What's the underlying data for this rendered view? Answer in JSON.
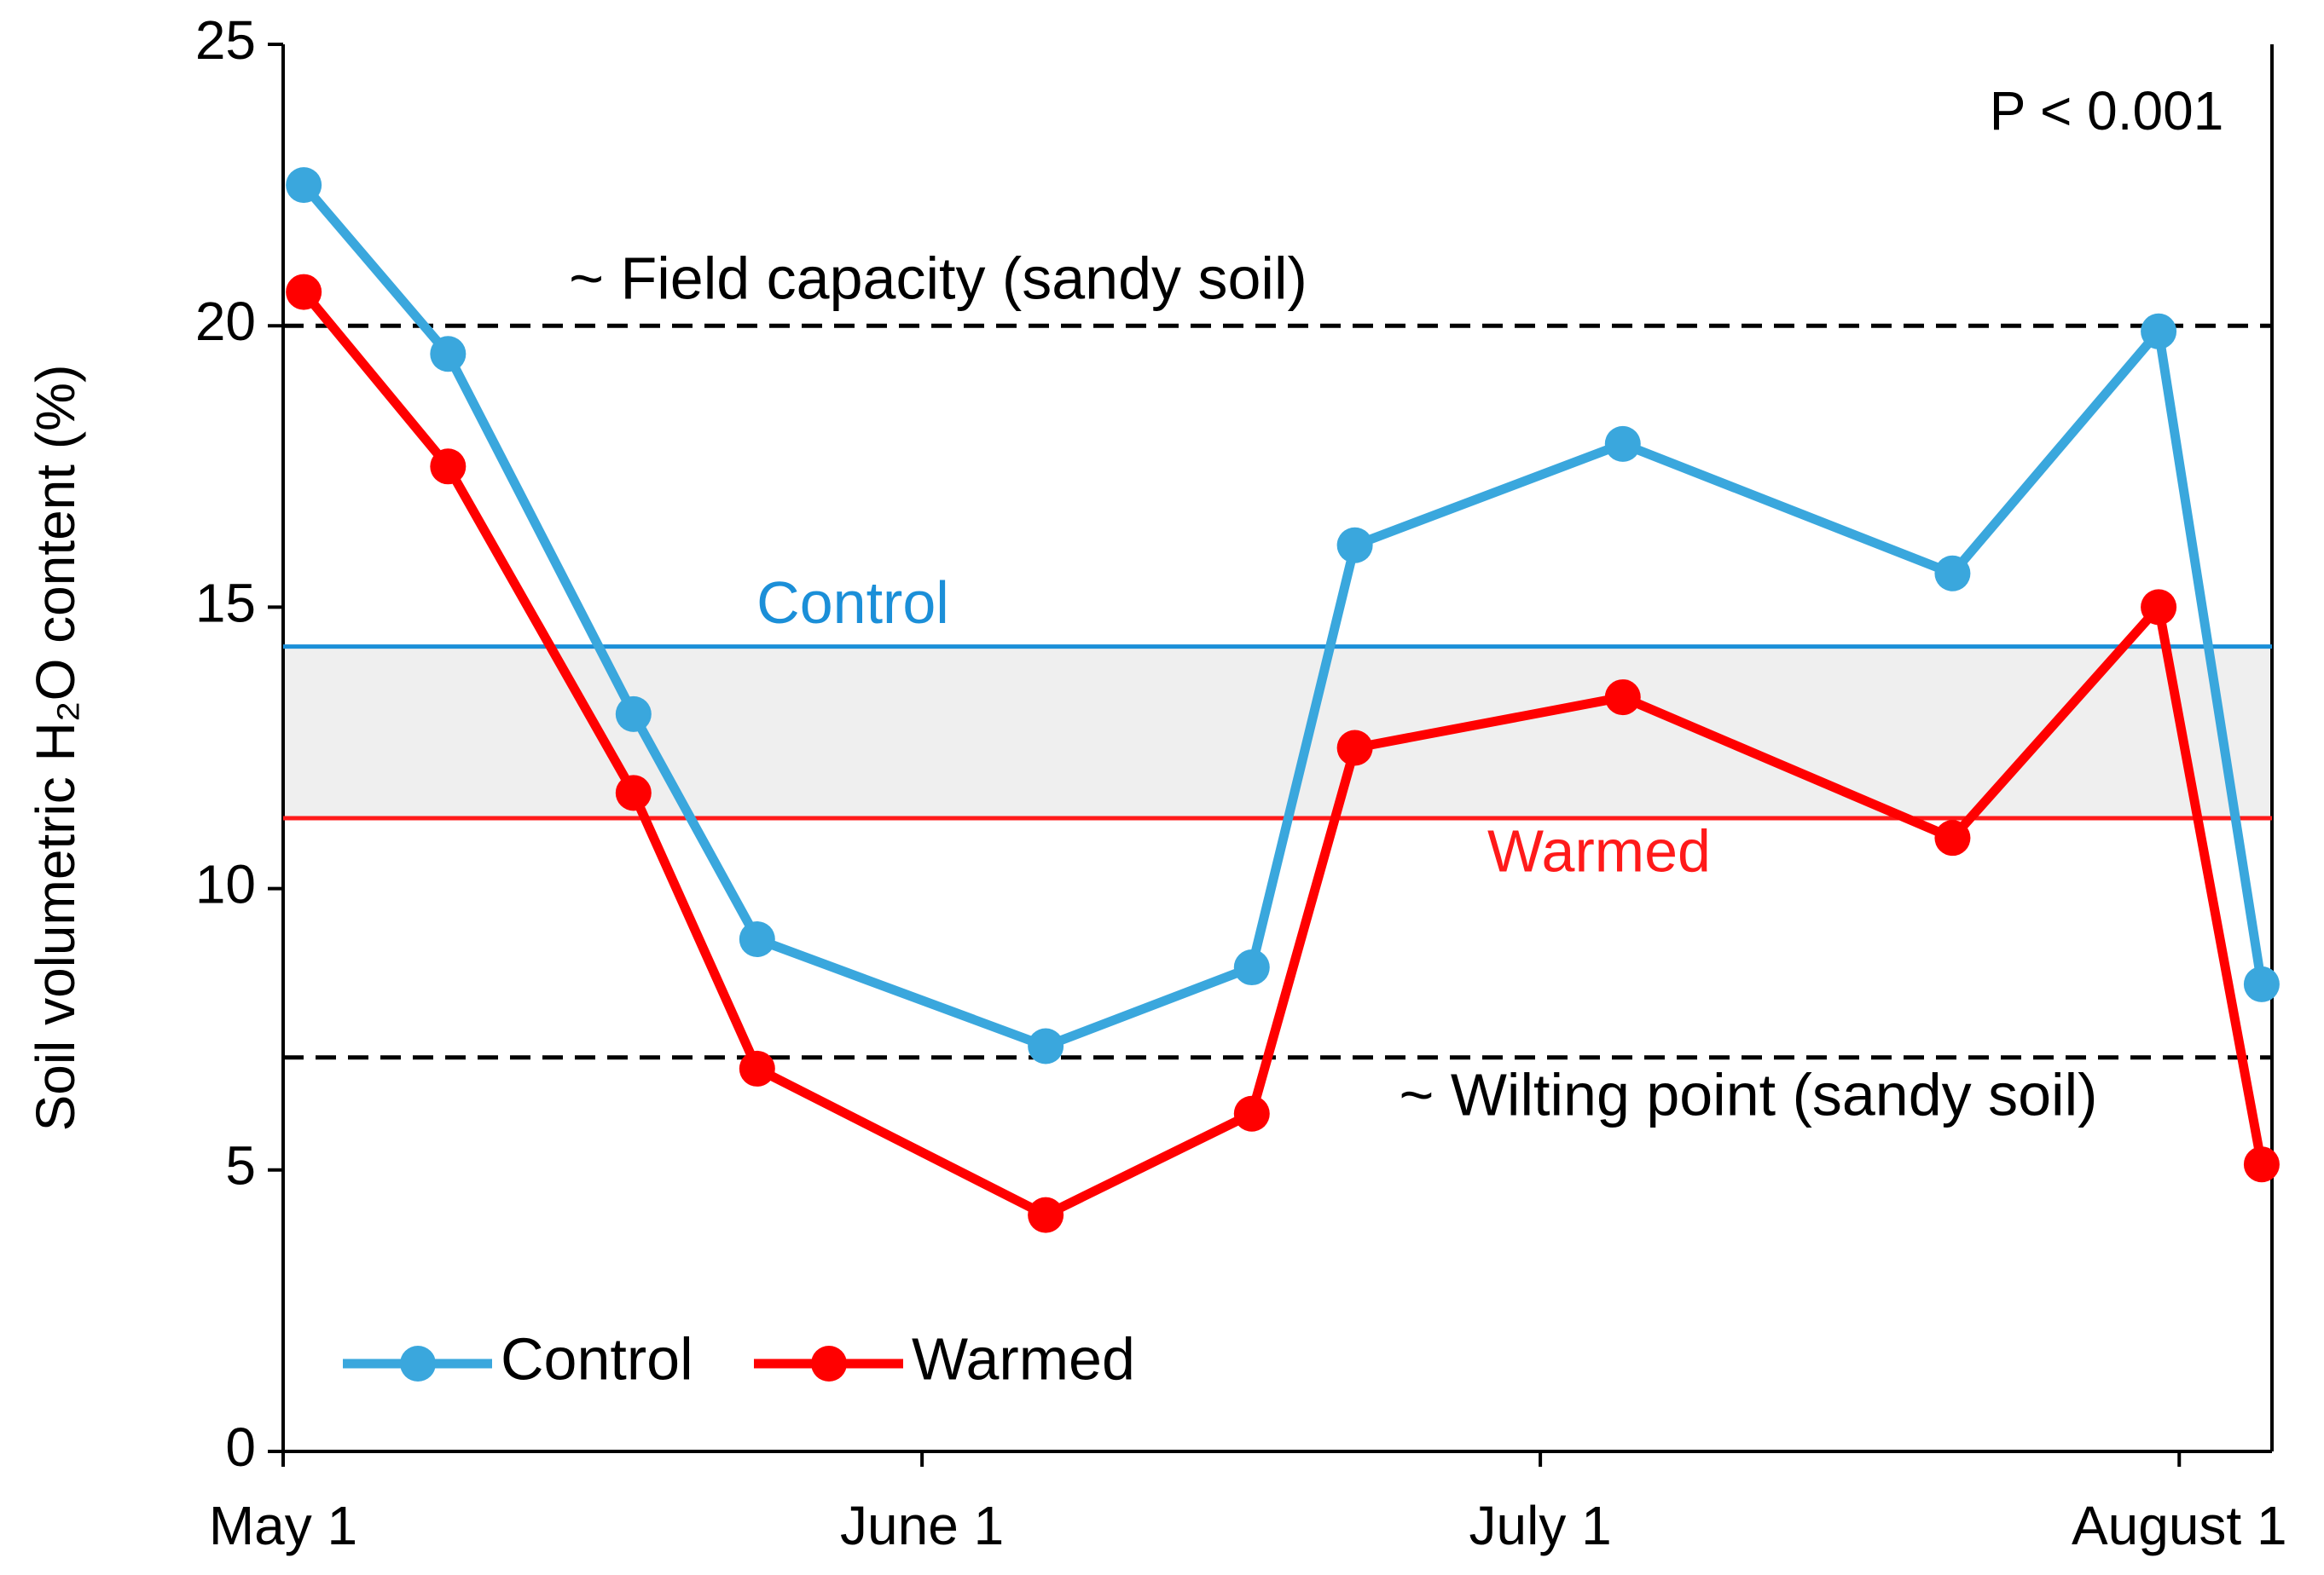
{
  "chart_data": {
    "type": "line",
    "y_label": "Soil volumetric H₂O content (%)",
    "x": [
      1,
      8,
      17,
      23,
      37,
      47,
      52,
      65,
      81,
      91,
      96
    ],
    "xlim": [
      0,
      96.5
    ],
    "xticks": [
      {
        "value": 0,
        "label": "May 1"
      },
      {
        "value": 31,
        "label": "June 1"
      },
      {
        "value": 61,
        "label": "July 1"
      },
      {
        "value": 92,
        "label": "August 1"
      }
    ],
    "ylim": [
      0,
      25
    ],
    "yticks": [
      0,
      5,
      10,
      15,
      20,
      25
    ],
    "series": [
      {
        "name": "Control",
        "color": "#3aa7dd",
        "mean_color": "#1b8fd8",
        "mean": 14.3,
        "values": [
          22.5,
          19.5,
          13.1,
          9.1,
          7.2,
          8.6,
          16.1,
          17.9,
          15.6,
          19.9,
          8.3
        ]
      },
      {
        "name": "Warmed",
        "color": "#ff0000",
        "mean_color": "#ff1a1a",
        "mean": 11.25,
        "values": [
          20.6,
          17.5,
          11.7,
          6.8,
          4.2,
          6.0,
          12.5,
          13.4,
          10.9,
          15.0,
          5.1
        ]
      }
    ],
    "reference_lines": [
      {
        "label": "~ Field capacity (sandy soil)",
        "value": 20,
        "style": "dashed",
        "color": "#000000"
      },
      {
        "label": "~ Wilting point (sandy soil)",
        "value": 7,
        "style": "dashed",
        "color": "#000000"
      }
    ],
    "mean_band_color": "#efefef",
    "annotation": "P < 0.001",
    "legend": "lower left",
    "grid": false
  }
}
